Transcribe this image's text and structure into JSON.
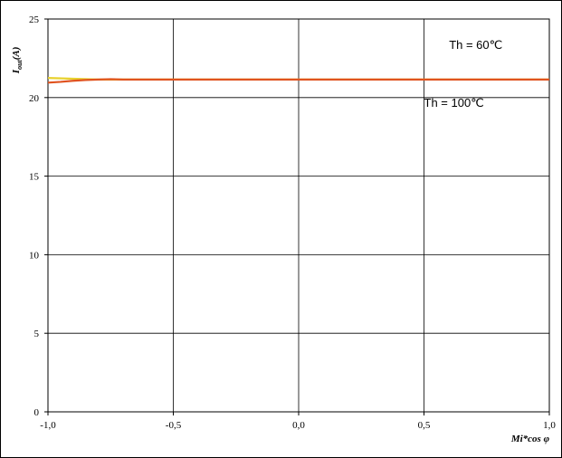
{
  "chart_data": {
    "type": "line",
    "title": "",
    "xlabel": "Mi*cos φ",
    "ylabel": "I_out(A)",
    "ylabel_main": "I",
    "ylabel_sub": "out",
    "ylabel_rest": "(A)",
    "xlim": [
      -1.0,
      1.0
    ],
    "ylim": [
      0,
      25
    ],
    "x_ticks": [
      -1.0,
      -0.5,
      0.0,
      0.5,
      1.0
    ],
    "x_tick_labels": [
      "-1,0",
      "-0,5",
      "0,0",
      "0,5",
      "1,0"
    ],
    "y_ticks": [
      0,
      5,
      10,
      15,
      20,
      25
    ],
    "y_tick_labels": [
      "0",
      "5",
      "10",
      "15",
      "20",
      "25"
    ],
    "grid": true,
    "legend": "none",
    "series": [
      {
        "color": "#e8d12e",
        "x": [
          -1.0,
          -0.9,
          -0.8,
          -0.7,
          -0.5,
          0.0,
          0.5,
          1.0
        ],
        "y": [
          21.25,
          21.2,
          21.15,
          21.15,
          21.15,
          21.15,
          21.15,
          21.15
        ]
      },
      {
        "color": "#e0531f",
        "x": [
          -1.0,
          -0.95,
          -0.9,
          -0.85,
          -0.8,
          -0.75,
          -0.7,
          -0.6,
          -0.5,
          0.0,
          0.5,
          1.0
        ],
        "y": [
          20.95,
          21.0,
          21.07,
          21.12,
          21.15,
          21.17,
          21.15,
          21.15,
          21.15,
          21.15,
          21.15,
          21.15
        ]
      }
    ],
    "annotations": [
      {
        "text": "Th = 60℃",
        "x": 0.6,
        "y": 23.1
      },
      {
        "text": "Th = 100℃",
        "x": 0.5,
        "y": 19.4
      }
    ]
  }
}
